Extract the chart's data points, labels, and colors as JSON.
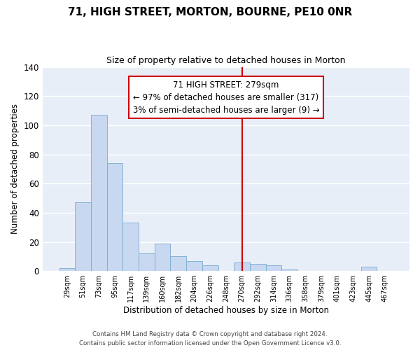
{
  "title": "71, HIGH STREET, MORTON, BOURNE, PE10 0NR",
  "subtitle": "Size of property relative to detached houses in Morton",
  "xlabel": "Distribution of detached houses by size in Morton",
  "ylabel": "Number of detached properties",
  "bar_color": "#c8d8f0",
  "bar_edge_color": "#7aaad0",
  "background_color": "#e8eef8",
  "categories": [
    "29sqm",
    "51sqm",
    "73sqm",
    "95sqm",
    "117sqm",
    "139sqm",
    "160sqm",
    "182sqm",
    "204sqm",
    "226sqm",
    "248sqm",
    "270sqm",
    "292sqm",
    "314sqm",
    "336sqm",
    "358sqm",
    "379sqm",
    "401sqm",
    "423sqm",
    "445sqm",
    "467sqm"
  ],
  "values": [
    2,
    47,
    107,
    74,
    33,
    12,
    19,
    10,
    7,
    4,
    0,
    6,
    5,
    4,
    1,
    0,
    0,
    0,
    0,
    3,
    0
  ],
  "ylim": [
    0,
    140
  ],
  "yticks": [
    0,
    20,
    40,
    60,
    80,
    100,
    120,
    140
  ],
  "vline_color": "#cc0000",
  "vline_index": 11,
  "annotation_title": "71 HIGH STREET: 279sqm",
  "annotation_line1": "← 97% of detached houses are smaller (317)",
  "annotation_line2": "3% of semi-detached houses are larger (9) →",
  "footer1": "Contains HM Land Registry data © Crown copyright and database right 2024.",
  "footer2": "Contains public sector information licensed under the Open Government Licence v3.0."
}
